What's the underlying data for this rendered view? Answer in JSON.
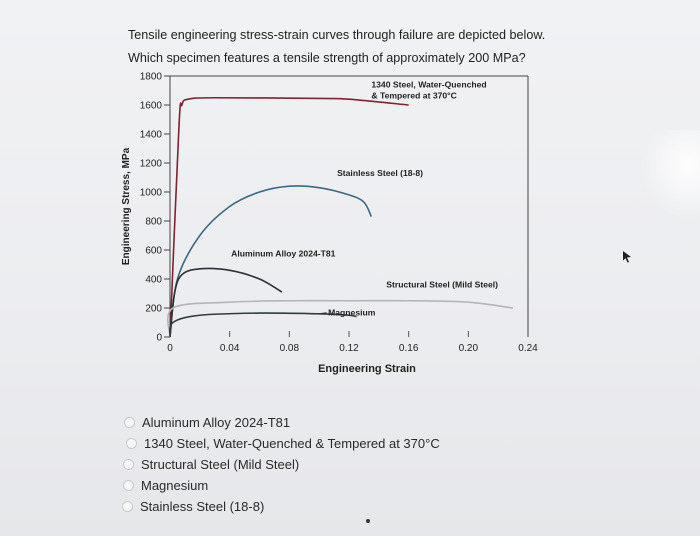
{
  "question": {
    "line1": "Tensile engineering stress-strain curves through failure are depicted below.",
    "line2": "Which specimen features a tensile strength of approximately 200 MPa?"
  },
  "chart_data": {
    "type": "line",
    "xlabel": "Engineering Strain",
    "ylabel": "Engineering Stress, MPa",
    "xlim": [
      0,
      0.24
    ],
    "ylim": [
      0,
      1800
    ],
    "x_ticks": [
      "0",
      "0.04",
      "0.08",
      "0.12",
      "0.16",
      "0.20",
      "0.24"
    ],
    "y_ticks": [
      "0",
      "200",
      "400",
      "600",
      "800",
      "1000",
      "1200",
      "1400",
      "1600",
      "1800"
    ],
    "series": [
      {
        "name": "1340 Steel, Water-Quenched & Tempered at 370°C",
        "label_lines": [
          "1340 Steel, Water-Quenched",
          "& Tempered at 370°C"
        ],
        "color": "#7a2530",
        "points": [
          [
            0,
            0
          ],
          [
            0.006,
            1450
          ],
          [
            0.008,
            1600
          ],
          [
            0.012,
            1640
          ],
          [
            0.03,
            1650
          ],
          [
            0.1,
            1645
          ],
          [
            0.12,
            1640
          ],
          [
            0.16,
            1600
          ]
        ]
      },
      {
        "name": "Stainless Steel (18-8)",
        "label_lines": [
          "Stainless Steel (18-8)"
        ],
        "color": "#3a6a82",
        "points": [
          [
            0,
            0
          ],
          [
            0.005,
            400
          ],
          [
            0.02,
            700
          ],
          [
            0.04,
            900
          ],
          [
            0.06,
            1000
          ],
          [
            0.08,
            1040
          ],
          [
            0.1,
            1030
          ],
          [
            0.12,
            980
          ],
          [
            0.13,
            930
          ],
          [
            0.135,
            830
          ]
        ]
      },
      {
        "name": "Aluminum Alloy 2024-T81",
        "label_lines": [
          "Aluminum Alloy 2024-T81"
        ],
        "color": "#2c3138",
        "points": [
          [
            0,
            0
          ],
          [
            0.003,
            300
          ],
          [
            0.008,
            430
          ],
          [
            0.02,
            470
          ],
          [
            0.04,
            460
          ],
          [
            0.06,
            400
          ],
          [
            0.075,
            310
          ]
        ]
      },
      {
        "name": "Structural Steel (Mild Steel)",
        "label_lines": [
          "Structural Steel (Mild Steel)"
        ],
        "color": "#b5b5b8",
        "points": [
          [
            0,
            0
          ],
          [
            0.002,
            200
          ],
          [
            0.04,
            240
          ],
          [
            0.08,
            250
          ],
          [
            0.12,
            250
          ],
          [
            0.16,
            250
          ],
          [
            0.2,
            240
          ],
          [
            0.23,
            200
          ]
        ]
      },
      {
        "name": "Magnesium",
        "label_lines": [
          "Magnesium"
        ],
        "color": "#2e3d40",
        "points": [
          [
            0,
            0
          ],
          [
            0.002,
            100
          ],
          [
            0.02,
            150
          ],
          [
            0.06,
            165
          ],
          [
            0.1,
            160
          ],
          [
            0.12,
            150
          ],
          [
            0.125,
            140
          ]
        ]
      }
    ]
  },
  "options": [
    {
      "label": "Aluminum Alloy 2024-T81"
    },
    {
      "label": "1340 Steel, Water-Quenched & Tempered at 370°C"
    },
    {
      "label": "Structural Steel (Mild Steel)"
    },
    {
      "label": "Magnesium"
    },
    {
      "label": "Stainless Steel (18-8)"
    }
  ],
  "icons": {
    "cursor": "pointer-arrow-icon"
  }
}
